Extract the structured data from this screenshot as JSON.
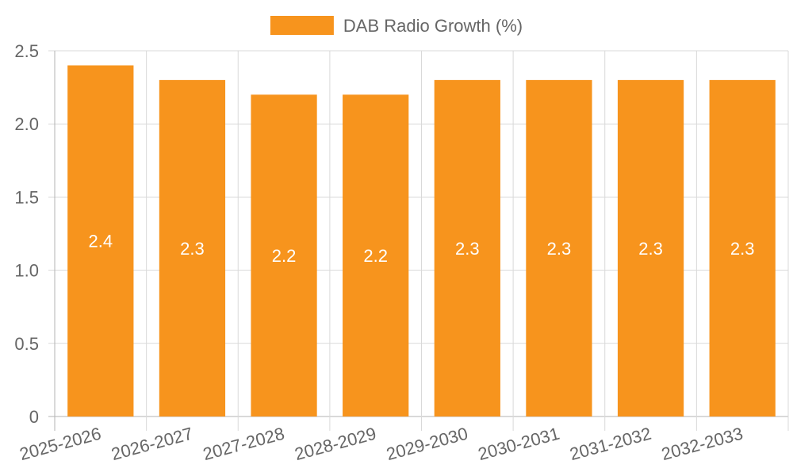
{
  "chart_data": {
    "type": "bar",
    "title": "",
    "xlabel": "",
    "ylabel": "",
    "categories": [
      "2025-2026",
      "2026-2027",
      "2027-2028",
      "2028-2029",
      "2029-2030",
      "2030-2031",
      "2031-2032",
      "2032-2033"
    ],
    "series": [
      {
        "name": "DAB Radio Growth (%)",
        "values": [
          2.4,
          2.3,
          2.2,
          2.2,
          2.3,
          2.3,
          2.3,
          2.3
        ],
        "data_labels": [
          "2.4",
          "2.3",
          "2.2",
          "2.2",
          "2.3",
          "2.3",
          "2.3",
          "2.3"
        ]
      }
    ],
    "y_ticks": [
      0,
      0.5,
      1.0,
      1.5,
      2.0,
      2.5
    ],
    "y_tick_labels": [
      "0",
      "0.5",
      "1.0",
      "1.5",
      "2.0",
      "2.5"
    ],
    "ylim": [
      0,
      2.5
    ],
    "grid": true,
    "legend_position": "top-center",
    "colors": {
      "bar": "#F7941D",
      "grid": "#d9d9d9",
      "axis": "#b3b3b3",
      "text": "#666666",
      "data_label": "#ffffff"
    }
  }
}
